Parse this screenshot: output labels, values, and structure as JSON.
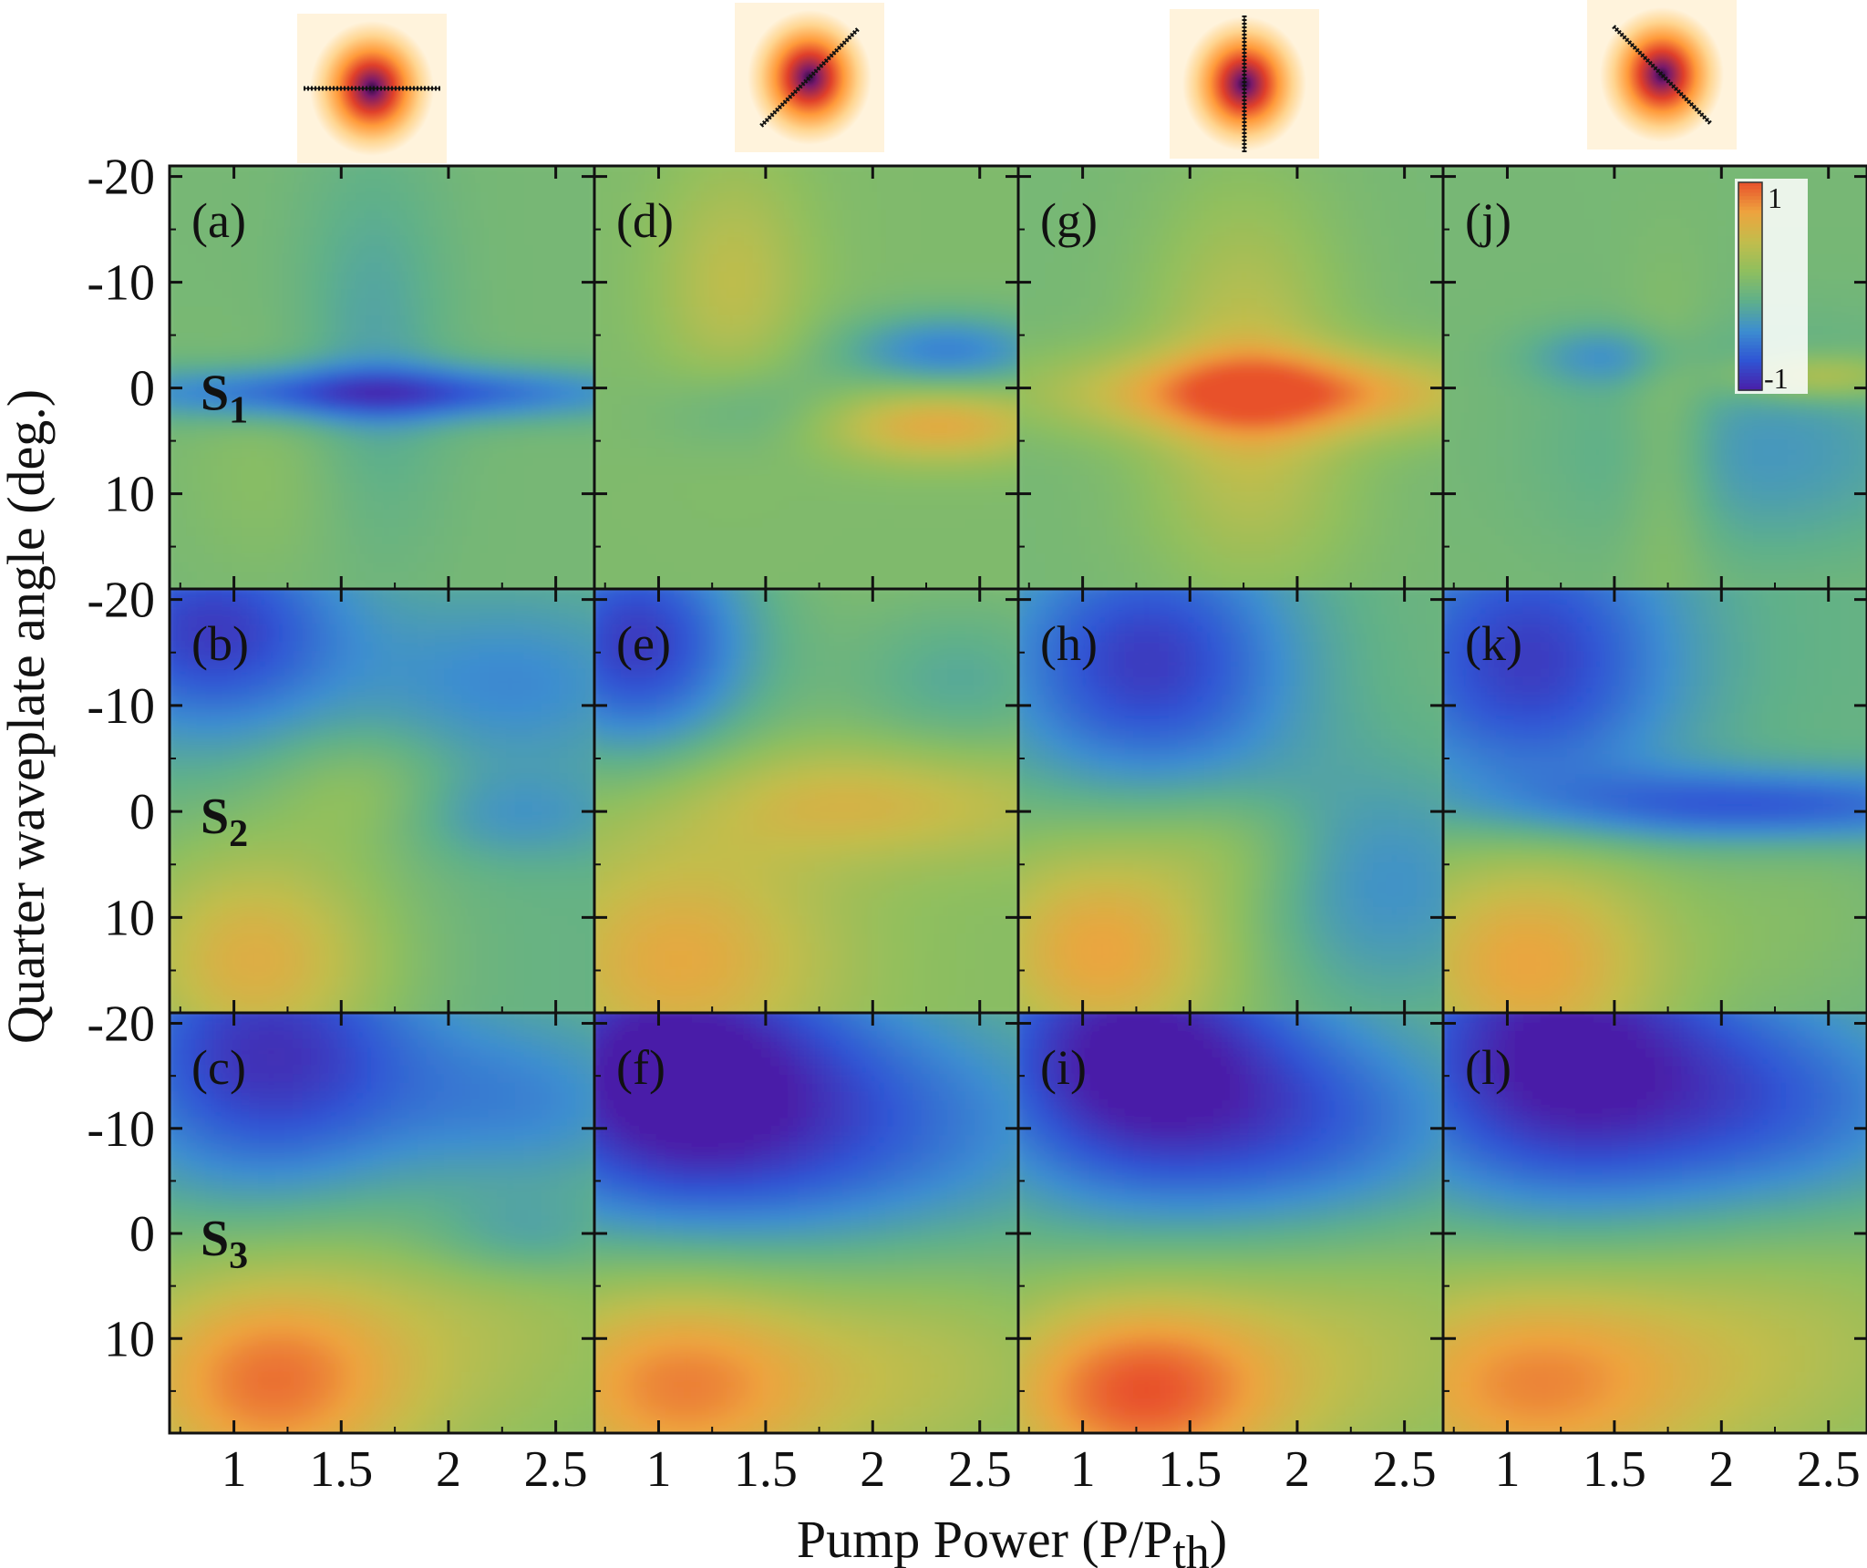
{
  "chart_data": {
    "type": "heatmap",
    "grid": {
      "rows": 3,
      "cols": 4
    },
    "xlabel": "Pump Power (P/P",
    "xlabel_sub": "th",
    "xlabel_close": ")",
    "ylabel": "Quarter waveplate angle (deg.)",
    "xlim": [
      0.7,
      2.68
    ],
    "ylim": [
      -21,
      19
    ],
    "y_inverted": true,
    "x_ticks": [
      1,
      1.5,
      2,
      2.5
    ],
    "x_tick_labels": [
      "1",
      "1.5",
      "2",
      "2.5"
    ],
    "y_ticks": [
      -20,
      -10,
      0,
      10
    ],
    "y_tick_labels": [
      "-20",
      "-10",
      "0",
      "10"
    ],
    "row_labels": [
      {
        "base": "S",
        "sub": "1"
      },
      {
        "base": "S",
        "sub": "2"
      },
      {
        "base": "S",
        "sub": "3"
      }
    ],
    "column_polarizer_angles_deg": [
      0,
      -45,
      90,
      45
    ],
    "colorbar": {
      "max_label": "1",
      "min_label": "-1",
      "range": [
        -1,
        1
      ]
    },
    "colors": {
      "scale": [
        "#4a1fa8",
        "#2f55d4",
        "#3d8ed0",
        "#5fb08a",
        "#8fbf5e",
        "#c2bd4c",
        "#eea33e",
        "#e8512c"
      ],
      "beam": [
        "#2b0a4a",
        "#7a1a6a",
        "#e0402a",
        "#ff9a3a",
        "#ffd590",
        "#fff3dc"
      ]
    },
    "panels": [
      {
        "label": "(a)",
        "row": 0,
        "col": 0,
        "base": 0.0,
        "features": [
          {
            "x": 1.65,
            "y": 0.5,
            "sx": 0.9,
            "sy": 1.8,
            "a": -0.75
          },
          {
            "x": 1.65,
            "y": -4,
            "sx": 0.25,
            "sy": 13,
            "a": -0.25
          },
          {
            "x": 1.2,
            "y": 8,
            "sx": 0.3,
            "sy": 7,
            "a": 0.12
          }
        ]
      },
      {
        "label": "(d)",
        "row": 0,
        "col": 1,
        "base": 0.05,
        "features": [
          {
            "x": 2.35,
            "y": -3.5,
            "sx": 0.35,
            "sy": 2.5,
            "a": -0.55
          },
          {
            "x": 2.3,
            "y": 3.5,
            "sx": 0.4,
            "sy": 2.5,
            "a": 0.6
          },
          {
            "x": 1.35,
            "y": -10,
            "sx": 0.25,
            "sy": 8,
            "a": 0.35
          },
          {
            "x": 1.45,
            "y": 2,
            "sx": 0.3,
            "sy": 3,
            "a": -0.25
          }
        ]
      },
      {
        "label": "(g)",
        "row": 0,
        "col": 2,
        "base": 0.0,
        "features": [
          {
            "x": 1.9,
            "y": 0.5,
            "sx": 0.7,
            "sy": 2.8,
            "a": 0.8
          },
          {
            "x": 1.75,
            "y": -5,
            "sx": 0.3,
            "sy": 10,
            "a": 0.35
          },
          {
            "x": 1.8,
            "y": 9,
            "sx": 0.35,
            "sy": 8,
            "a": 0.25
          }
        ]
      },
      {
        "label": "(j)",
        "row": 0,
        "col": 3,
        "base": 0.0,
        "features": [
          {
            "x": 2.45,
            "y": -1,
            "sx": 0.3,
            "sy": 1.5,
            "a": 0.5
          },
          {
            "x": 2.2,
            "y": 6,
            "sx": 0.6,
            "sy": 7,
            "a": -0.35
          },
          {
            "x": 1.45,
            "y": -3,
            "sx": 0.25,
            "sy": 2,
            "a": -0.35
          },
          {
            "x": 1.75,
            "y": 6,
            "sx": 0.15,
            "sy": 10,
            "a": 0.25
          }
        ]
      },
      {
        "label": "(b)",
        "row": 1,
        "col": 0,
        "base": -0.1,
        "features": [
          {
            "x": 0.9,
            "y": -17,
            "sx": 0.45,
            "sy": 7,
            "a": -0.75
          },
          {
            "x": 2.3,
            "y": -12,
            "sx": 0.5,
            "sy": 6,
            "a": -0.35
          },
          {
            "x": 1.1,
            "y": 14,
            "sx": 0.45,
            "sy": 8,
            "a": 0.7
          },
          {
            "x": 1.6,
            "y": -2,
            "sx": 0.3,
            "sy": 4,
            "a": 0.25
          },
          {
            "x": 2.3,
            "y": 0.5,
            "sx": 0.4,
            "sy": 3,
            "a": -0.25
          }
        ]
      },
      {
        "label": "(e)",
        "row": 1,
        "col": 1,
        "base": 0.1,
        "features": [
          {
            "x": 0.9,
            "y": -16,
            "sx": 0.4,
            "sy": 8,
            "a": -0.95
          },
          {
            "x": 2.0,
            "y": -1,
            "sx": 0.7,
            "sy": 4,
            "a": 0.45
          },
          {
            "x": 1.1,
            "y": 14,
            "sx": 0.5,
            "sy": 8,
            "a": 0.55
          },
          {
            "x": 2.4,
            "y": -12,
            "sx": 0.4,
            "sy": 6,
            "a": -0.3
          }
        ]
      },
      {
        "label": "(h)",
        "row": 1,
        "col": 2,
        "base": -0.05,
        "features": [
          {
            "x": 1.3,
            "y": -14,
            "sx": 0.5,
            "sy": 9,
            "a": -0.8
          },
          {
            "x": 2.4,
            "y": 7,
            "sx": 0.45,
            "sy": 8,
            "a": -0.35
          },
          {
            "x": 1.1,
            "y": 13,
            "sx": 0.45,
            "sy": 8,
            "a": 0.75
          },
          {
            "x": 1.7,
            "y": 3,
            "sx": 0.3,
            "sy": 4,
            "a": 0.2
          }
        ]
      },
      {
        "label": "(k)",
        "row": 1,
        "col": 3,
        "base": -0.1,
        "features": [
          {
            "x": 1.1,
            "y": -14,
            "sx": 0.5,
            "sy": 10,
            "a": -0.75
          },
          {
            "x": 2.2,
            "y": -0.5,
            "sx": 0.8,
            "sy": 2.5,
            "a": -0.65
          },
          {
            "x": 1.1,
            "y": 14,
            "sx": 0.5,
            "sy": 9,
            "a": 0.8
          },
          {
            "x": 2.4,
            "y": 10,
            "sx": 0.4,
            "sy": 8,
            "a": 0.15
          }
        ]
      },
      {
        "label": "(c)",
        "row": 2,
        "col": 0,
        "base": 0.0,
        "features": [
          {
            "x": 1.15,
            "y": -17,
            "sx": 0.55,
            "sy": 10,
            "a": -0.9
          },
          {
            "x": 2.4,
            "y": -12,
            "sx": 0.5,
            "sy": 7,
            "a": -0.45
          },
          {
            "x": 1.15,
            "y": 14,
            "sx": 0.5,
            "sy": 8,
            "a": 0.85
          },
          {
            "x": 2.2,
            "y": 8,
            "sx": 0.6,
            "sy": 10,
            "a": 0.25
          },
          {
            "x": 2.35,
            "y": 0.5,
            "sx": 0.35,
            "sy": 3,
            "a": -0.3
          }
        ]
      },
      {
        "label": "(f)",
        "row": 2,
        "col": 1,
        "base": 0.0,
        "features": [
          {
            "x": 1.0,
            "y": -16,
            "sx": 0.6,
            "sy": 11,
            "a": -0.95
          },
          {
            "x": 2.0,
            "y": -10,
            "sx": 0.8,
            "sy": 9,
            "a": -0.55
          },
          {
            "x": 1.1,
            "y": 14,
            "sx": 0.55,
            "sy": 8,
            "a": 0.85
          },
          {
            "x": 2.3,
            "y": 12,
            "sx": 0.5,
            "sy": 8,
            "a": 0.3
          }
        ]
      },
      {
        "label": "(i)",
        "row": 2,
        "col": 2,
        "base": 0.0,
        "features": [
          {
            "x": 1.2,
            "y": -17,
            "sx": 0.55,
            "sy": 10,
            "a": -1.0
          },
          {
            "x": 2.15,
            "y": -10,
            "sx": 0.6,
            "sy": 8,
            "a": -0.55
          },
          {
            "x": 1.25,
            "y": 15,
            "sx": 0.5,
            "sy": 7,
            "a": 0.95
          },
          {
            "x": 2.3,
            "y": 10,
            "sx": 0.6,
            "sy": 9,
            "a": 0.3
          }
        ]
      },
      {
        "label": "(l)",
        "row": 2,
        "col": 3,
        "base": 0.0,
        "features": [
          {
            "x": 1.2,
            "y": -17,
            "sx": 0.6,
            "sy": 11,
            "a": -1.0
          },
          {
            "x": 2.3,
            "y": -12,
            "sx": 0.6,
            "sy": 8,
            "a": -0.55
          },
          {
            "x": 1.1,
            "y": 14,
            "sx": 0.6,
            "sy": 8,
            "a": 0.8
          },
          {
            "x": 2.3,
            "y": 10,
            "sx": 0.6,
            "sy": 9,
            "a": 0.3
          }
        ]
      }
    ]
  }
}
